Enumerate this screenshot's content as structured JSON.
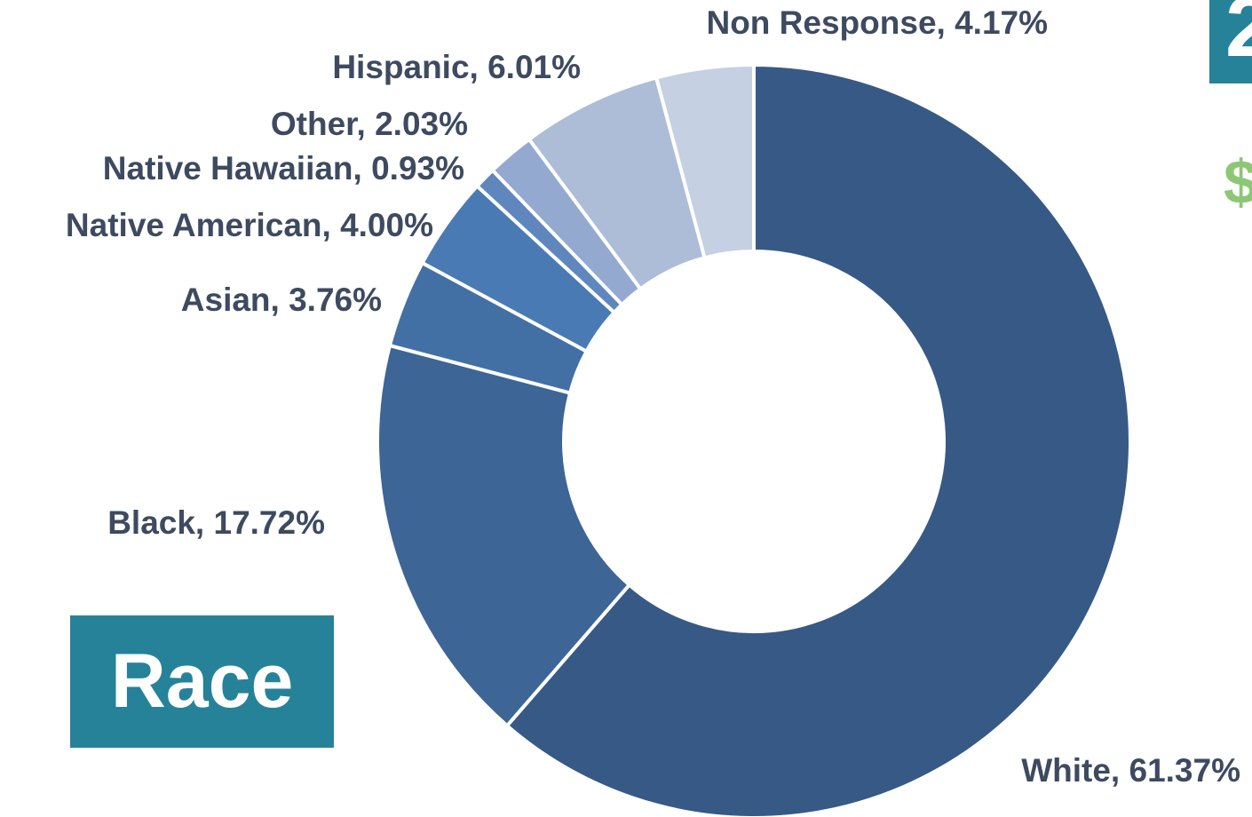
{
  "chart_data": {
    "type": "pie",
    "variant": "donut",
    "title": "Race",
    "slices": [
      {
        "label": "White, 61.37%",
        "category": "White",
        "value": 61.37,
        "color": "#375985"
      },
      {
        "label": "Black, 17.72%",
        "category": "Black",
        "value": 17.72,
        "color": "#3d6595"
      },
      {
        "label": "Asian, 3.76%",
        "category": "Asian",
        "value": 3.76,
        "color": "#4270a4"
      },
      {
        "label": "Native American, 4.00%",
        "category": "Native American",
        "value": 4.0,
        "color": "#4a7ab3"
      },
      {
        "label": "Native Hawaiian, 0.93%",
        "category": "Native Hawaiian",
        "value": 0.93,
        "color": "#5f87be"
      },
      {
        "label": "Other, 2.03%",
        "category": "Other",
        "value": 2.03,
        "color": "#93a9d0"
      },
      {
        "label": "Hispanic, 6.01%",
        "category": "Hispanic",
        "value": 6.01,
        "color": "#adbdd8"
      },
      {
        "label": "Non Response, 4.17%",
        "category": "Non Response",
        "value": 4.17,
        "color": "#c6d0e3"
      }
    ],
    "legend": "none",
    "label_position": "outside"
  },
  "colors": {
    "title_box": "#268299",
    "label_text": "#3d4a60",
    "accent_green": "#8dc776"
  },
  "clipped_text": {
    "corner": "2",
    "dollar": "$"
  }
}
